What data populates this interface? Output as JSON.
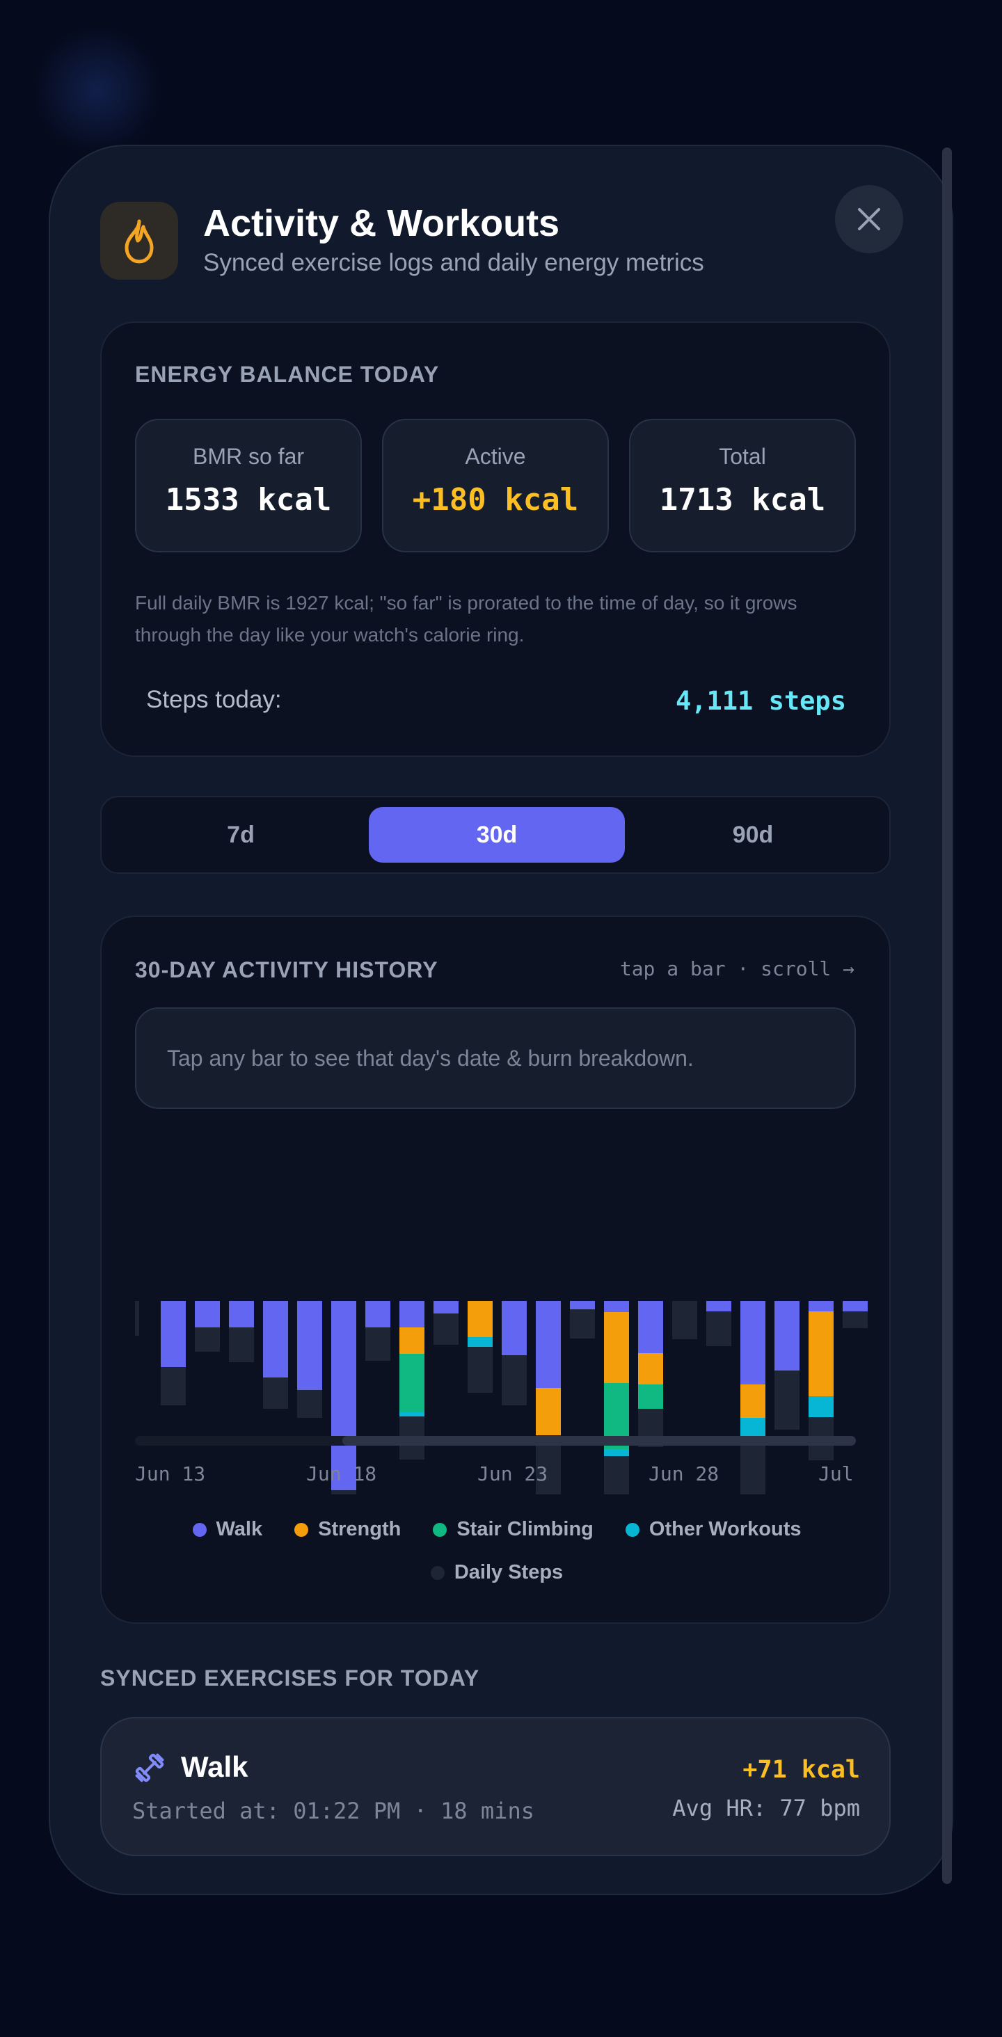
{
  "header": {
    "title": "Activity & Workouts",
    "subtitle": "Synced exercise logs and daily energy metrics",
    "icon": "flame-icon",
    "close_icon": "close-icon"
  },
  "energy": {
    "section_title": "ENERGY BALANCE TODAY",
    "stats": [
      {
        "label": "BMR so far",
        "value": "1533 kcal"
      },
      {
        "label": "Active",
        "value": "+180 kcal"
      },
      {
        "label": "Total",
        "value": "1713 kcal"
      }
    ],
    "note": "Full daily BMR is 1927 kcal; \"so far\" is prorated to the time of day, so it grows through the day like your watch's calorie ring.",
    "steps_label": "Steps today:",
    "steps_value": "4,111 steps"
  },
  "range_tabs": {
    "options": [
      "7d",
      "30d",
      "90d"
    ],
    "selected": "30d"
  },
  "history": {
    "section_title": "30-DAY ACTIVITY HISTORY",
    "hint": "tap a bar · scroll →",
    "info": "Tap any bar to see that day's date & burn breakdown.",
    "legend": [
      "Walk",
      "Strength",
      "Stair Climbing",
      "Other Workouts",
      "Daily Steps"
    ]
  },
  "colors": {
    "walk": "#6366f1",
    "strength": "#f59e0b",
    "stair": "#10b981",
    "other": "#06b6d4",
    "steps": "#1e2535",
    "accent": "#6366f1"
  },
  "chart_data": {
    "type": "bar",
    "stacked": true,
    "x_tick_labels": [
      "Jun 13",
      "Jun 18",
      "Jun 23",
      "Jun 28",
      "Jul"
    ],
    "series": [
      {
        "name": "Walk",
        "values": [
          0,
          95,
          38,
          38,
          110,
          128,
          272,
          38,
          38,
          18,
          0,
          78,
          125,
          12,
          16,
          75,
          0,
          15,
          120,
          100,
          15,
          15
        ]
      },
      {
        "name": "Strength",
        "values": [
          0,
          0,
          0,
          0,
          0,
          0,
          0,
          0,
          38,
          0,
          52,
          0,
          68,
          0,
          102,
          45,
          0,
          0,
          48,
          0,
          122,
          0
        ]
      },
      {
        "name": "Stair Climbing",
        "values": [
          0,
          0,
          0,
          0,
          0,
          0,
          0,
          0,
          84,
          0,
          0,
          0,
          0,
          0,
          95,
          35,
          0,
          0,
          0,
          0,
          0,
          0
        ]
      },
      {
        "name": "Other Workouts",
        "values": [
          0,
          0,
          0,
          0,
          0,
          0,
          0,
          0,
          6,
          0,
          14,
          0,
          0,
          0,
          10,
          0,
          0,
          0,
          28,
          0,
          30,
          0
        ]
      },
      {
        "name": "Daily Steps",
        "values": [
          50,
          55,
          35,
          50,
          45,
          40,
          105,
          48,
          62,
          45,
          66,
          72,
          95,
          42,
          56,
          55,
          55,
          50,
          85,
          85,
          62,
          24
        ]
      }
    ]
  },
  "exercises": {
    "section_title": "SYNCED EXERCISES FOR TODAY",
    "items": [
      {
        "name": "Walk",
        "meta": "Started at: 01:22 PM · 18 mins",
        "kcal": "+71 kcal",
        "hr": "Avg HR: 77 bpm",
        "icon": "dumbbell-icon"
      }
    ]
  }
}
